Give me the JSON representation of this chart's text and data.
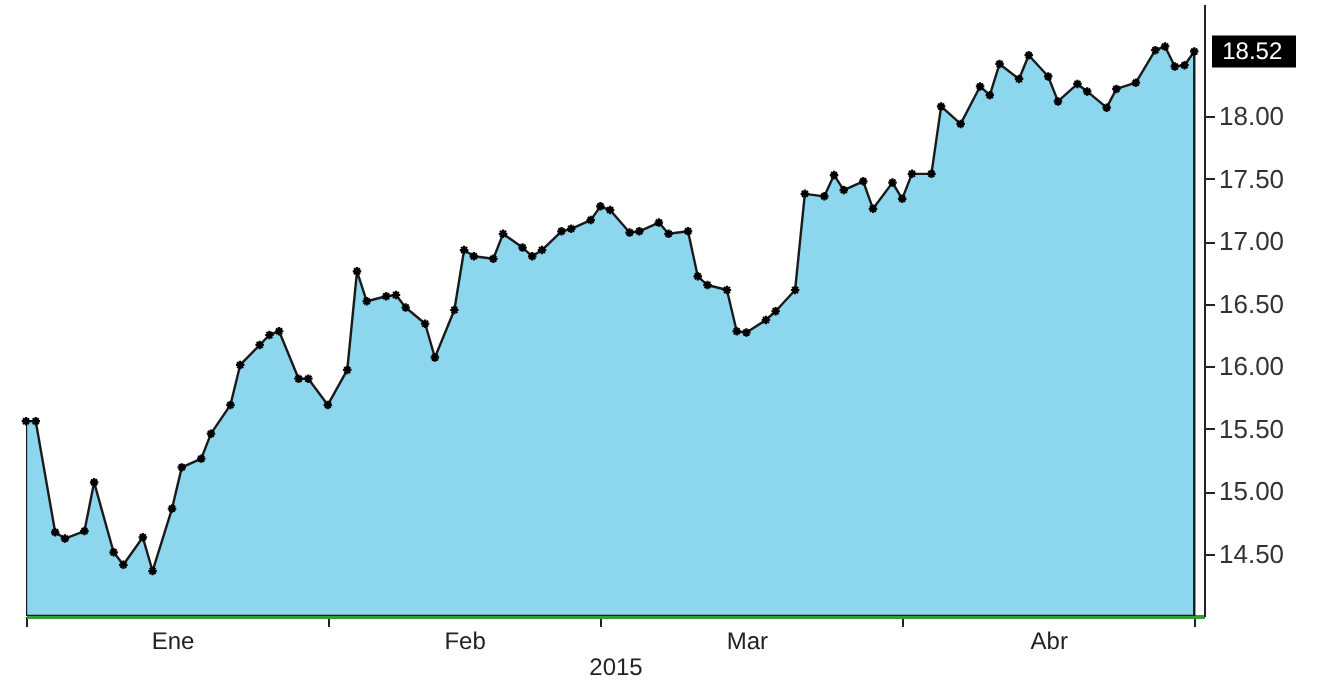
{
  "chart_data": {
    "type": "area",
    "xlabel": "2015",
    "marker": "cross",
    "line_style": "solid",
    "x": [
      "2015-01-01",
      "2015-01-02",
      "2015-01-04",
      "2015-01-05",
      "2015-01-07",
      "2015-01-08",
      "2015-01-10",
      "2015-01-11",
      "2015-01-13",
      "2015-01-14",
      "2015-01-16",
      "2015-01-17",
      "2015-01-19",
      "2015-01-20",
      "2015-01-22",
      "2015-01-23",
      "2015-01-25",
      "2015-01-26",
      "2015-01-27",
      "2015-01-29",
      "2015-01-30",
      "2015-02-01",
      "2015-02-03",
      "2015-02-04",
      "2015-02-05",
      "2015-02-07",
      "2015-02-08",
      "2015-02-09",
      "2015-02-11",
      "2015-02-12",
      "2015-02-14",
      "2015-02-15",
      "2015-02-16",
      "2015-02-18",
      "2015-02-19",
      "2015-02-21",
      "2015-02-22",
      "2015-02-23",
      "2015-02-25",
      "2015-02-26",
      "2015-02-28",
      "2015-03-01",
      "2015-03-02",
      "2015-03-04",
      "2015-03-05",
      "2015-03-07",
      "2015-03-08",
      "2015-03-10",
      "2015-03-11",
      "2015-03-12",
      "2015-03-14",
      "2015-03-15",
      "2015-03-16",
      "2015-03-18",
      "2015-03-19",
      "2015-03-21",
      "2015-03-22",
      "2015-03-24",
      "2015-03-25",
      "2015-03-26",
      "2015-03-28",
      "2015-03-29",
      "2015-03-31",
      "2015-04-01",
      "2015-04-02",
      "2015-04-04",
      "2015-04-05",
      "2015-04-07",
      "2015-04-09",
      "2015-04-10",
      "2015-04-11",
      "2015-04-13",
      "2015-04-14",
      "2015-04-16",
      "2015-04-17",
      "2015-04-19",
      "2015-04-20",
      "2015-04-22",
      "2015-04-23",
      "2015-04-25",
      "2015-04-27",
      "2015-04-28",
      "2015-04-29",
      "2015-04-30",
      "2015-05-01"
    ],
    "series": [
      {
        "color": "#8cd6ee",
        "values": [
          15.56,
          15.56,
          14.67,
          14.62,
          14.68,
          15.07,
          14.51,
          14.41,
          14.63,
          14.36,
          14.86,
          15.19,
          15.26,
          15.46,
          15.69,
          16.01,
          16.17,
          16.25,
          16.28,
          15.9,
          15.9,
          15.69,
          15.97,
          16.76,
          16.52,
          16.56,
          16.57,
          16.47,
          16.34,
          16.07,
          16.45,
          16.93,
          16.88,
          16.86,
          17.06,
          16.95,
          16.88,
          16.93,
          17.08,
          17.1,
          17.17,
          17.28,
          17.25,
          17.07,
          17.08,
          17.15,
          17.06,
          17.08,
          16.72,
          16.65,
          16.61,
          16.28,
          16.27,
          16.37,
          16.44,
          16.61,
          17.38,
          17.36,
          17.53,
          17.41,
          17.48,
          17.26,
          17.47,
          17.34,
          17.54,
          17.54,
          18.08,
          17.94,
          18.24,
          18.17,
          18.42,
          18.3,
          18.49,
          18.32,
          18.12,
          18.26,
          18.2,
          18.07,
          18.22,
          18.27,
          18.53,
          18.56,
          18.4,
          18.41,
          18.52
        ]
      }
    ],
    "xlim": [
      "2015-01-01",
      "2015-05-02"
    ],
    "xticks": [
      {
        "value": "2015-01-01",
        "label": null
      },
      {
        "value": "2015-01-16",
        "label": "Ene"
      },
      {
        "value": "2015-02-01",
        "label": null
      },
      {
        "value": "2015-02-15",
        "label": "Feb"
      },
      {
        "value": "2015-03-01",
        "label": null
      },
      {
        "value": "2015-03-16",
        "label": "Mar"
      },
      {
        "value": "2015-04-01",
        "label": null
      },
      {
        "value": "2015-04-16",
        "label": "Abr"
      },
      {
        "value": "2015-05-01",
        "label": null
      }
    ],
    "ylim": [
      14.0,
      18.9
    ],
    "yticks": [
      {
        "value": 14.5,
        "label": "14.50"
      },
      {
        "value": 15,
        "label": "15.00"
      },
      {
        "value": 15.5,
        "label": "15.50"
      },
      {
        "value": 16,
        "label": "16.00"
      },
      {
        "value": 16.5,
        "label": "16.50"
      },
      {
        "value": 17,
        "label": "17.00"
      },
      {
        "value": 17.5,
        "label": "17.50"
      },
      {
        "value": 18,
        "label": "18.00"
      }
    ],
    "annotations": [
      {
        "text": "18.52",
        "x": "2015-05-01",
        "y": 18.52
      }
    ]
  }
}
